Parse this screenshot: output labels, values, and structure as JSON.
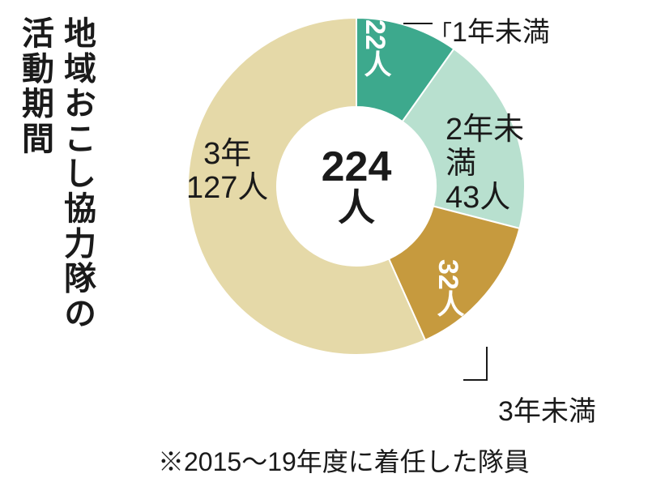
{
  "title": {
    "line1": "地域おこし協力隊の",
    "line2": "活動期間"
  },
  "chart": {
    "type": "donut",
    "total_value": 224,
    "total_unit": "人",
    "outer_radius": 208,
    "inner_radius": 98,
    "start_angle_deg": -90,
    "background_color": "#ffffff",
    "stroke_color": "#ffffff",
    "stroke_width": 2,
    "segments": [
      {
        "id": "lt1y",
        "label": "1年未満",
        "value": 22,
        "unit": "人",
        "color": "#3da98d"
      },
      {
        "id": "lt2y",
        "label": "2年未満",
        "value": 43,
        "unit": "人",
        "color": "#b8e0cf"
      },
      {
        "id": "lt3y",
        "label": "3年未満",
        "value": 32,
        "unit": "人",
        "color": "#c69a3e"
      },
      {
        "id": "3y",
        "label": "3年",
        "value": 127,
        "unit": "人",
        "color": "#e5d9a8"
      }
    ]
  },
  "footnote": "※2015〜19年度に着任した隊員",
  "typography": {
    "title_fontsize": 40,
    "center_num_fontsize": 52,
    "center_unit_fontsize": 46,
    "label_fontsize": 34,
    "footnote_fontsize": 32,
    "text_color": "#1a1a1a"
  }
}
